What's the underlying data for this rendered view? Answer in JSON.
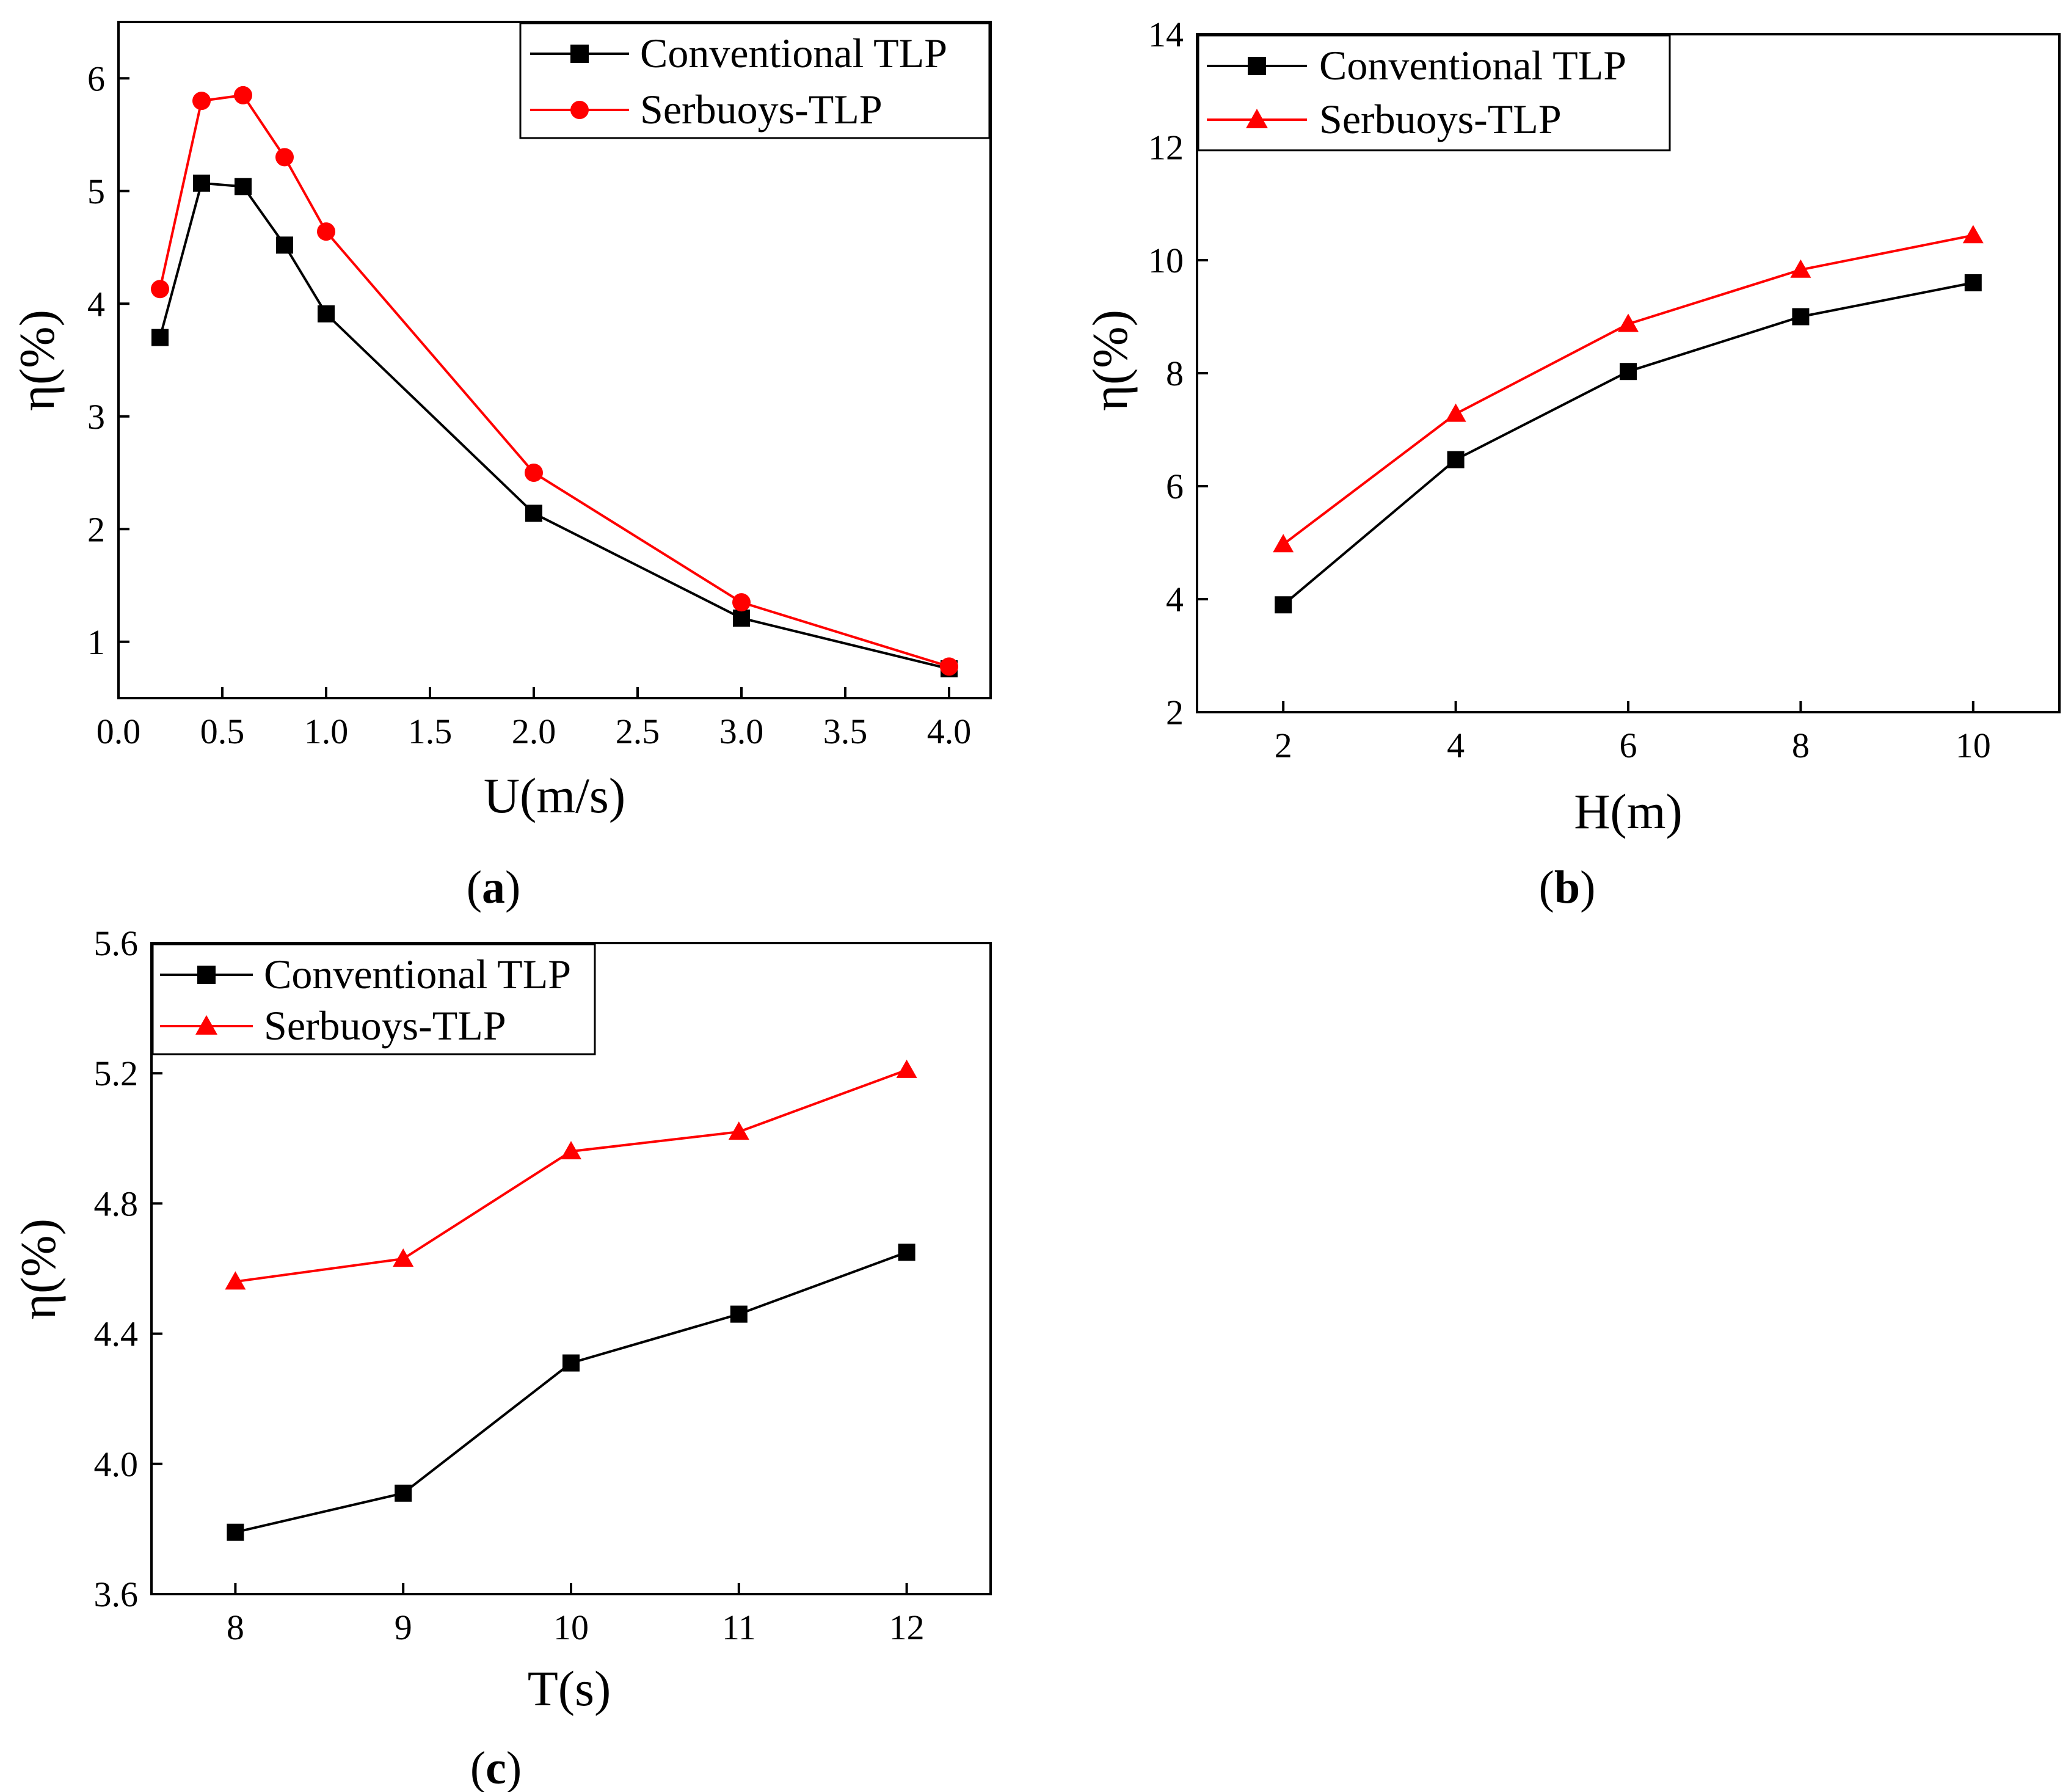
{
  "chart_data": [
    {
      "type": "line",
      "panel": "a",
      "caption": "a",
      "xlabel": "U(m/s)",
      "ylabel": "η(%)",
      "xlim": [
        0.0,
        4.2
      ],
      "ylim": [
        0.5,
        6.5
      ],
      "xticks": [
        0.0,
        0.5,
        1.0,
        1.5,
        2.0,
        2.5,
        3.0,
        3.5,
        4.0
      ],
      "xtick_labels": [
        "0.0",
        "0.5",
        "1.0",
        "1.5",
        "2.0",
        "2.5",
        "3.0",
        "3.5",
        "4.0"
      ],
      "yticks": [
        1,
        2,
        3,
        4,
        5,
        6
      ],
      "ytick_labels": [
        "1",
        "2",
        "3",
        "4",
        "5",
        "6"
      ],
      "legend": "top-right",
      "series": [
        {
          "name": "Conventional TLP",
          "color": "#000000",
          "marker": "square",
          "x": [
            0.2,
            0.4,
            0.6,
            0.8,
            1.0,
            2.0,
            3.0,
            4.0
          ],
          "y": [
            3.7,
            5.07,
            5.04,
            4.52,
            3.91,
            2.14,
            1.21,
            0.76
          ]
        },
        {
          "name": "Serbuoys-TLP",
          "color": "#ff0000",
          "marker": "circle",
          "x": [
            0.2,
            0.4,
            0.6,
            0.8,
            1.0,
            2.0,
            3.0,
            4.0
          ],
          "y": [
            4.13,
            5.8,
            5.85,
            5.3,
            4.64,
            2.5,
            1.35,
            0.78
          ]
        }
      ]
    },
    {
      "type": "line",
      "panel": "b",
      "caption": "b",
      "xlabel": "H(m)",
      "ylabel": "η(%)",
      "xlim": [
        1.0,
        11.0
      ],
      "ylim": [
        2,
        14
      ],
      "xticks": [
        2,
        4,
        6,
        8,
        10
      ],
      "xtick_labels": [
        "2",
        "4",
        "6",
        "8",
        "10"
      ],
      "yticks": [
        2,
        4,
        6,
        8,
        10,
        12,
        14
      ],
      "ytick_labels": [
        "2",
        "4",
        "6",
        "8",
        "10",
        "12",
        "14"
      ],
      "legend": "top-left",
      "series": [
        {
          "name": "Conventional TLP",
          "color": "#000000",
          "marker": "square",
          "x": [
            2,
            4,
            6,
            8,
            10
          ],
          "y": [
            3.9,
            6.47,
            8.03,
            9.0,
            9.6
          ]
        },
        {
          "name": "Serbuoys-TLP",
          "color": "#ff0000",
          "marker": "triangle",
          "x": [
            2,
            4,
            6,
            8,
            10
          ],
          "y": [
            4.97,
            7.28,
            8.87,
            9.83,
            10.44
          ]
        }
      ]
    },
    {
      "type": "line",
      "panel": "c",
      "caption": "c",
      "xlabel": "T(s)",
      "ylabel": "η(%)",
      "xlim": [
        7.5,
        12.5
      ],
      "ylim": [
        3.6,
        5.6
      ],
      "xticks": [
        8,
        9,
        10,
        11,
        12
      ],
      "xtick_labels": [
        "8",
        "9",
        "10",
        "11",
        "12"
      ],
      "yticks": [
        3.6,
        4.0,
        4.4,
        4.8,
        5.2,
        5.6
      ],
      "ytick_labels": [
        "3.6",
        "4.0",
        "4.4",
        "4.8",
        "5.2",
        "5.6"
      ],
      "legend": "top-left",
      "series": [
        {
          "name": "Conventional TLP",
          "color": "#000000",
          "marker": "square",
          "x": [
            8,
            9,
            10,
            11,
            12
          ],
          "y": [
            3.79,
            3.91,
            4.31,
            4.46,
            4.65
          ]
        },
        {
          "name": "Serbuoys-TLP",
          "color": "#ff0000",
          "marker": "triangle",
          "x": [
            8,
            9,
            10,
            11,
            12
          ],
          "y": [
            4.56,
            4.63,
            4.96,
            5.02,
            5.21
          ]
        }
      ]
    }
  ]
}
